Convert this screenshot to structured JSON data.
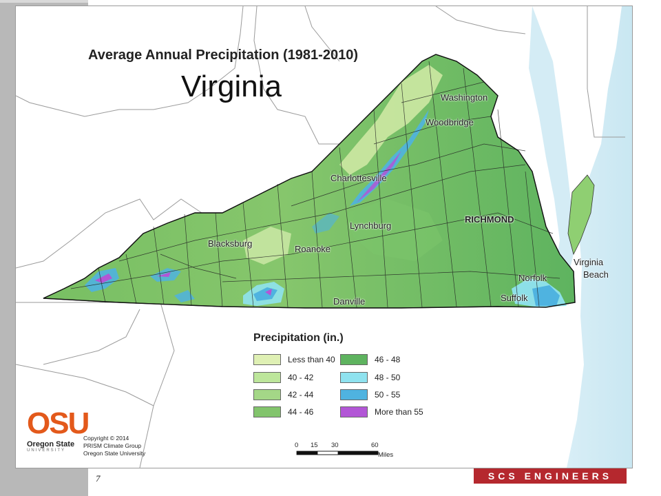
{
  "map": {
    "title": "Average Annual Precipitation (1981-2010)",
    "state": "Virginia",
    "cities": [
      {
        "name": "Washington",
        "bold": false
      },
      {
        "name": "Woodbridge",
        "bold": false
      },
      {
        "name": "Charlottesville",
        "bold": false
      },
      {
        "name": "RICHMOND",
        "bold": true
      },
      {
        "name": "Lynchburg",
        "bold": false
      },
      {
        "name": "Blacksburg",
        "bold": false
      },
      {
        "name": "Roanoke",
        "bold": false
      },
      {
        "name": "Virginia",
        "bold": false
      },
      {
        "name": "Beach",
        "bold": false
      },
      {
        "name": "Norfolk",
        "bold": false
      },
      {
        "name": "Suffolk",
        "bold": false
      },
      {
        "name": "Danville",
        "bold": false
      }
    ],
    "legend": {
      "title": "Precipitation (in.)",
      "items": [
        {
          "label": "Less than 40",
          "color": "#dff0b4"
        },
        {
          "label": "40 - 42",
          "color": "#bde69b"
        },
        {
          "label": "42 - 44",
          "color": "#a4d787"
        },
        {
          "label": "44 - 46",
          "color": "#82c46c"
        },
        {
          "label": "46 - 48",
          "color": "#5eb35f"
        },
        {
          "label": "48 - 50",
          "color": "#8fe2ef"
        },
        {
          "label": "50 - 55",
          "color": "#4fb3e0"
        },
        {
          "label": "More than 55",
          "color": "#b256d6"
        }
      ]
    },
    "scale_bar": {
      "ticks": [
        "0",
        "15",
        "30",
        "60"
      ],
      "unit": "Miles"
    },
    "credits": {
      "logo_letters": "OSU",
      "logo_name": "Oregon State",
      "logo_sub": "UNIVERSITY",
      "lines": [
        "Copyright © 2014",
        "PRISM Climate Group",
        "Oregon State University"
      ]
    }
  },
  "footer": {
    "page_number": "7",
    "brand": "SCS ENGINEERS",
    "brand_color": "#b5282e"
  }
}
